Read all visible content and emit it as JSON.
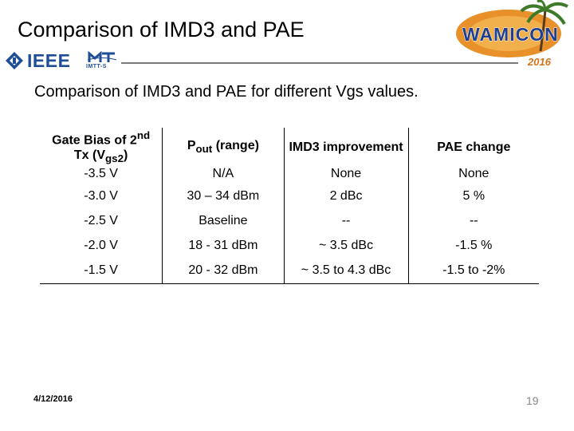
{
  "slide": {
    "title": "Comparison of IMD3 and PAE",
    "subtitle": "Comparison of IMD3 and PAE for different Vgs values.",
    "date": "4/12/2016",
    "page_number": "19"
  },
  "logos": {
    "ieee": "IEEE",
    "mtt": "IMTT-S",
    "wamicon": "WAMICON",
    "year": "2016"
  },
  "table": {
    "headers": [
      {
        "main": "Gate Bias of 2",
        "sup": "nd",
        "main2": " Tx (V",
        "sub": "gs2",
        "end": ")"
      },
      {
        "main": "P",
        "sub": "out",
        "end": " (range)"
      },
      {
        "main": "IMD3 improvement"
      },
      {
        "main": "PAE change"
      }
    ],
    "rows": [
      [
        "-3.5 V",
        "N/A",
        "None",
        "None"
      ],
      [
        "-3.0 V",
        "30 – 34 dBm",
        "2 dBc",
        "5 %"
      ],
      [
        "-2.5 V",
        "Baseline",
        "--",
        "--"
      ],
      [
        "-2.0 V",
        "18 - 31 dBm",
        "~ 3.5 dBc",
        "-1.5 %"
      ],
      [
        "-1.5 V",
        "20 - 32 dBm",
        "~ 3.5 to 4.3 dBc",
        "-1.5 to -2%"
      ]
    ]
  },
  "colors": {
    "ieee_blue": "#1f4e96",
    "wamicon_blue": "#1f3f8f",
    "wamicon_sun": "#e8902a",
    "palm_green": "#3d7a2a",
    "year_orange": "#d4731e",
    "rule_gray": "#7a7a7a"
  },
  "icons": {
    "ieee": "ieee-diamond-logo",
    "mtt": "mtt-society-logo",
    "wamicon": "wamicon-sun-palm-logo"
  }
}
